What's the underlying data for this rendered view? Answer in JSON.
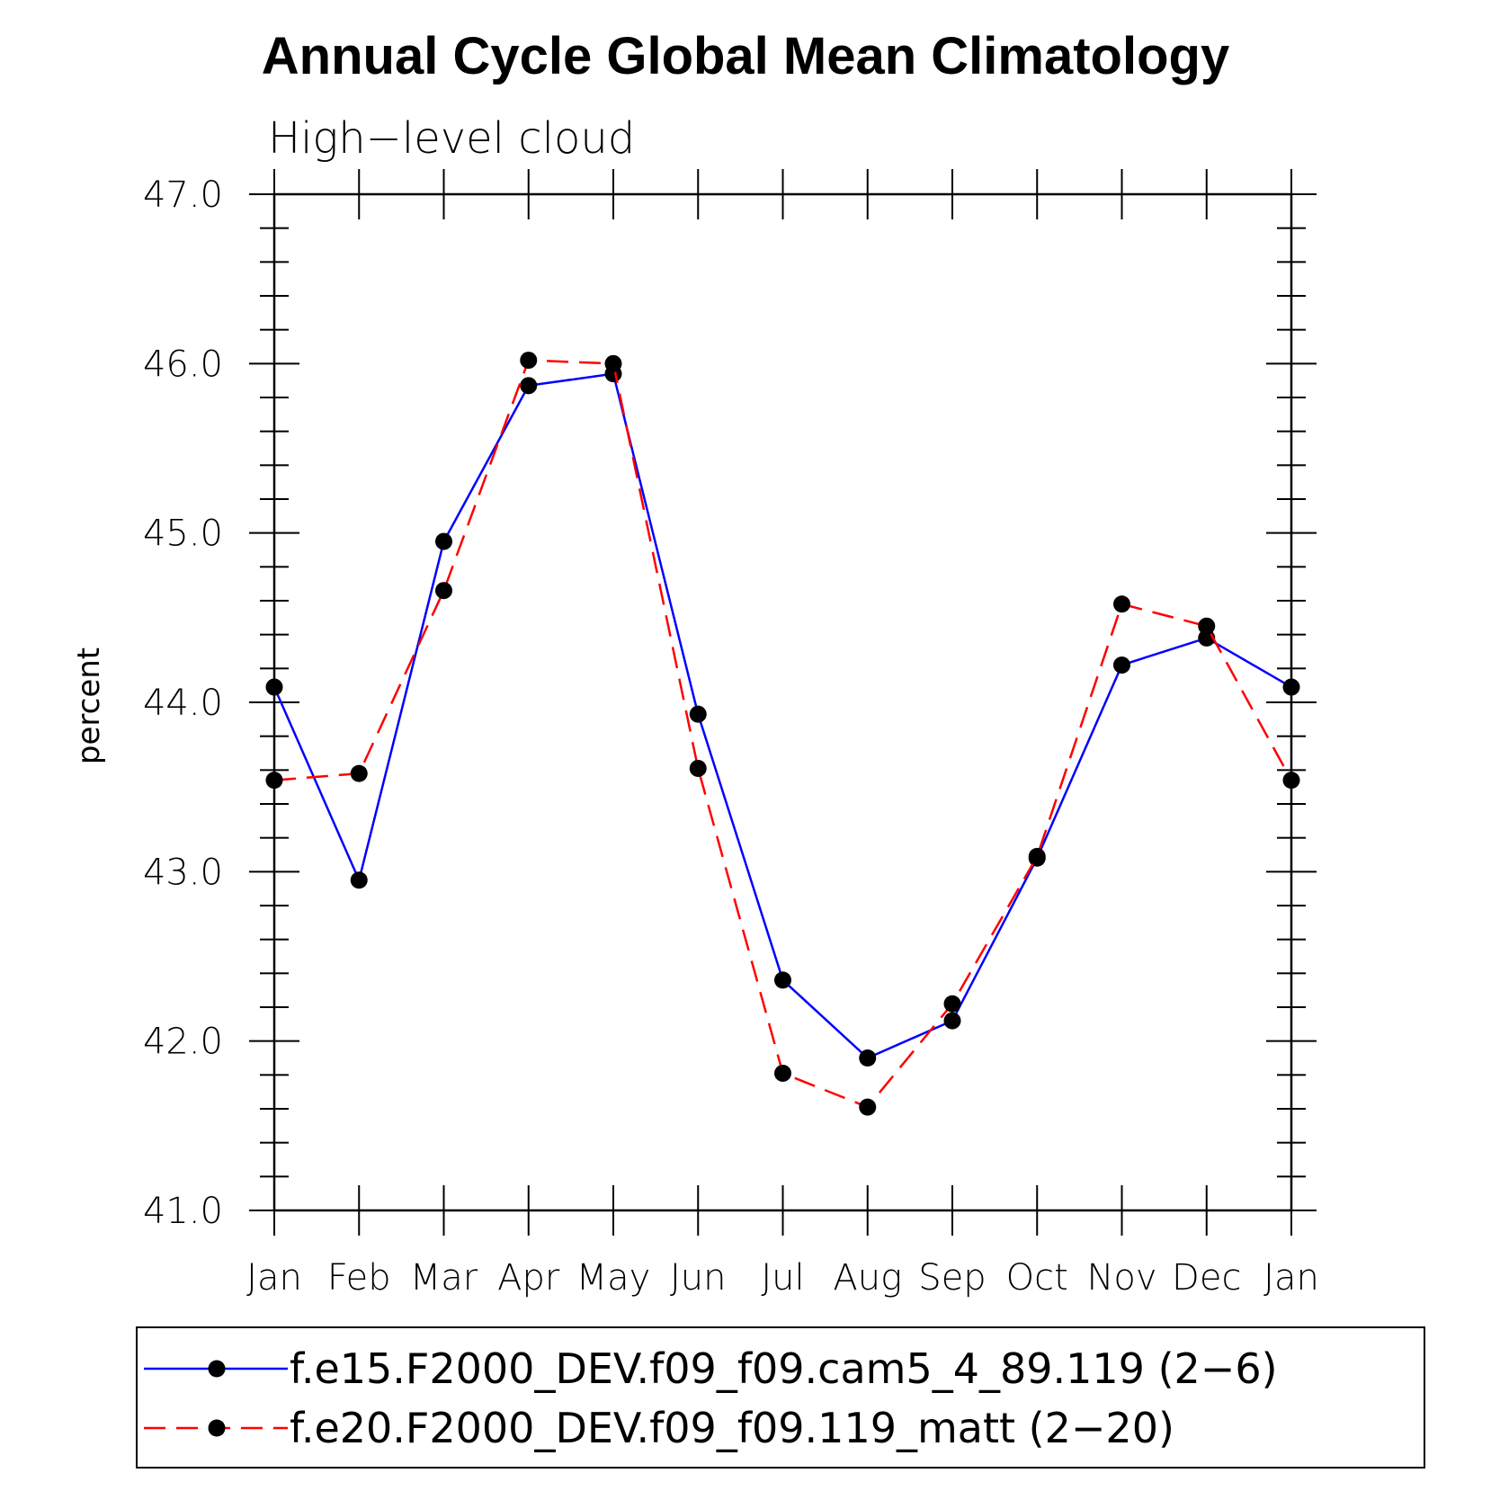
{
  "chart_data": {
    "type": "line",
    "title": "Annual Cycle Global Mean Climatology",
    "subtitle": "High−level cloud",
    "xlabel": "",
    "ylabel": "percent",
    "categories": [
      "Jan",
      "Feb",
      "Mar",
      "Apr",
      "May",
      "Jun",
      "Jul",
      "Aug",
      "Sep",
      "Oct",
      "Nov",
      "Dec",
      "Jan"
    ],
    "yticks": [
      "41.0",
      "42.0",
      "43.0",
      "44.0",
      "45.0",
      "46.0",
      "47.0"
    ],
    "ylim": [
      41.0,
      47.0
    ],
    "grid": false,
    "legend_position": "bottom",
    "series": [
      {
        "name": "f.e15.F2000_DEV.f09_f09.cam5_4_89.119 (2−6)",
        "color": "#0000ff",
        "style": "solid",
        "marker": "filled-circle",
        "values": [
          44.09,
          42.95,
          44.95,
          45.87,
          45.94,
          43.93,
          42.36,
          41.9,
          42.12,
          43.08,
          44.22,
          44.38,
          44.09
        ]
      },
      {
        "name": "f.e20.F2000_DEV.f09_f09.119_matt (2−20)",
        "color": "#ff0000",
        "style": "dashed",
        "marker": "filled-circle",
        "values": [
          43.54,
          43.58,
          44.66,
          46.02,
          46.0,
          43.61,
          41.81,
          41.61,
          42.22,
          43.09,
          44.58,
          44.45,
          43.54
        ]
      }
    ]
  }
}
